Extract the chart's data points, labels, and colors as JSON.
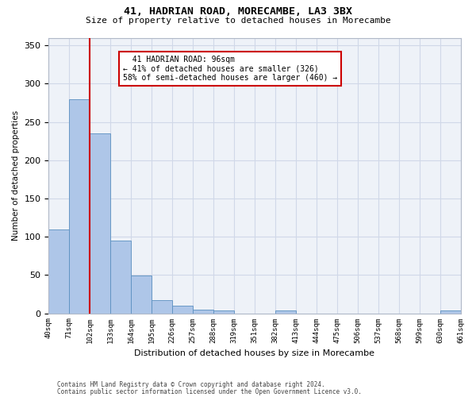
{
  "title_line1": "41, HADRIAN ROAD, MORECAMBE, LA3 3BX",
  "title_line2": "Size of property relative to detached houses in Morecambe",
  "xlabel": "Distribution of detached houses by size in Morecambe",
  "ylabel": "Number of detached properties",
  "footer_line1": "Contains HM Land Registry data © Crown copyright and database right 2024.",
  "footer_line2": "Contains public sector information licensed under the Open Government Licence v3.0.",
  "bin_labels": [
    "40sqm",
    "71sqm",
    "102sqm",
    "133sqm",
    "164sqm",
    "195sqm",
    "226sqm",
    "257sqm",
    "288sqm",
    "319sqm",
    "351sqm",
    "382sqm",
    "413sqm",
    "444sqm",
    "475sqm",
    "506sqm",
    "537sqm",
    "568sqm",
    "599sqm",
    "630sqm",
    "661sqm"
  ],
  "bar_values": [
    110,
    280,
    235,
    95,
    49,
    17,
    10,
    5,
    4,
    0,
    0,
    4,
    0,
    0,
    0,
    0,
    0,
    0,
    0,
    4
  ],
  "bar_color": "#aec6e8",
  "bar_edge_color": "#5a8fc0",
  "grid_color": "#d0d8e8",
  "background_color": "#eef2f8",
  "red_line_x": 2,
  "red_line_color": "#cc0000",
  "annotation_text": "  41 HADRIAN ROAD: 96sqm\n← 41% of detached houses are smaller (326)\n58% of semi-detached houses are larger (460) →",
  "annotation_box_color": "#ffffff",
  "annotation_box_edge": "#cc0000",
  "ylim": [
    0,
    360
  ],
  "yticks": [
    0,
    50,
    100,
    150,
    200,
    250,
    300,
    350
  ]
}
